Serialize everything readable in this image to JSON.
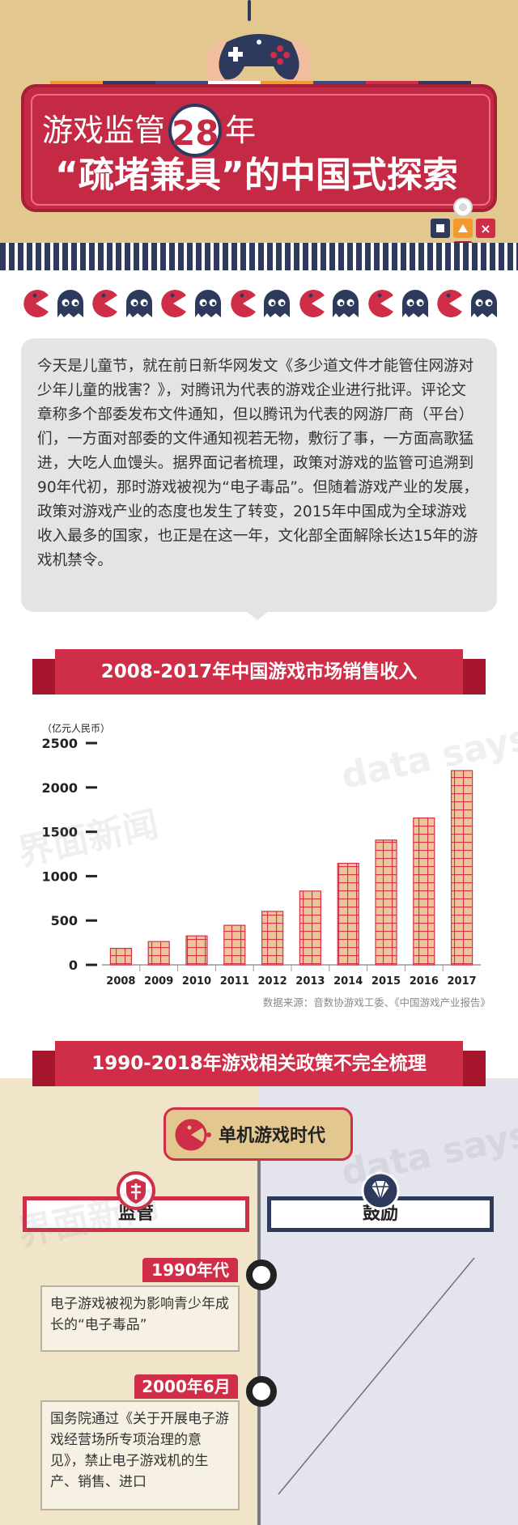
{
  "header": {
    "title_prefix": "游戏监管",
    "title_number": "28",
    "title_suffix": "年",
    "title_line2": "“疏堵兼具”的中国式探索",
    "btn_close": "×"
  },
  "intro": {
    "text": "今天是儿童节，就在前日新华网发文《多少道文件才能管住网游对少年儿童的戕害？》，对腾讯为代表的游戏企业进行批评。评论文章称多个部委发布文件通知，但以腾讯为代表的网游厂商（平台）们，一方面对部委的文件通知视若无物，敷衍了事，一方面高歌猛进，大吃人血馒头。据界面记者梳理，政策对游戏的监管可追溯到90年代初，那时游戏被视为“电子毒品”。但随着游戏产业的发展，政策对游戏产业的态度也发生了转变，2015年中国成为全球游戏收入最多的国家，也正是在这一年，文化部全面解除长达15年的游戏机禁令。"
  },
  "chart_section": {
    "ribbon_title": "2008-2017年中国游戏市场销售收入",
    "source": "数据来源：音数协游戏工委、《中国游戏产业报告》"
  },
  "chart_data": {
    "type": "bar",
    "title": "2008-2017年中国游戏市场销售收入",
    "ylabel": "（亿元人民币）",
    "categories": [
      "2008",
      "2009",
      "2010",
      "2011",
      "2012",
      "2013",
      "2014",
      "2015",
      "2016",
      "2017"
    ],
    "values": [
      186,
      263,
      327,
      446,
      603,
      832,
      1145,
      1407,
      1656,
      2190
    ],
    "yticks": [
      0,
      500,
      1000,
      1500,
      2000,
      2500
    ],
    "ylim": [
      0,
      2500
    ],
    "colors": {
      "bar": "#e9c59a",
      "bar_stroke": "#d6304a"
    }
  },
  "policy": {
    "ribbon_title": "1990-2018年游戏相关政策不完全梳理",
    "era": "单机游戏时代",
    "left_header": "监管",
    "right_header": "鼓励",
    "events": [
      {
        "date": "1990年代",
        "text": "电子游戏被视为影响青少年成长的“电子毒品”"
      },
      {
        "date": "2000年6月",
        "text": "国务院通过《关于开展电子游戏经营场所专项治理的意见》，禁止电子游戏机的生产、销售、进口"
      }
    ]
  },
  "watermarks": {
    "brand": "界面新闻",
    "datasays": "data says"
  },
  "colors": {
    "red": "#cf2d48",
    "dark_red": "#a5162d",
    "navy": "#2d3a5e",
    "sand": "#e2c88f",
    "cream": "#f1e5c9",
    "light_gray": "#e3e4ec"
  },
  "icons": [
    "gamepad-icon",
    "pacman-icon",
    "ghost-icon",
    "shield-icon",
    "diamond-icon"
  ]
}
